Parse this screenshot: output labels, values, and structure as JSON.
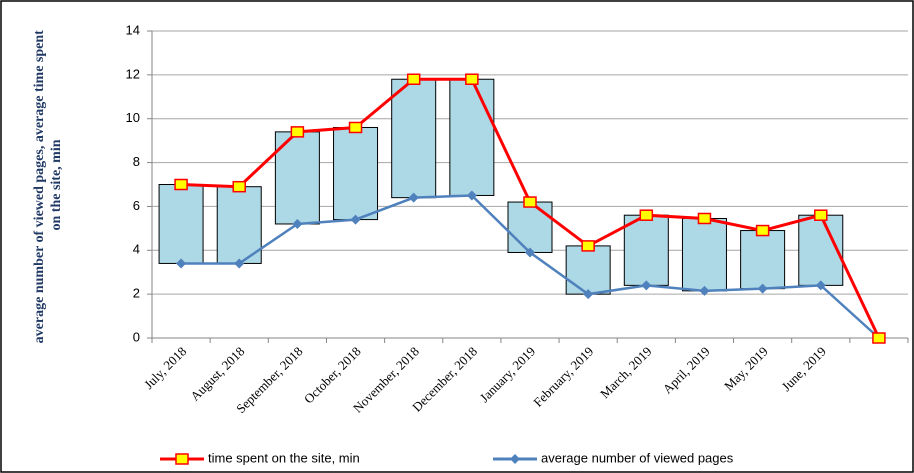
{
  "chart_data": {
    "type": "line",
    "ylabel": [
      "average number of viewed pages, average time spent",
      "on the site, min"
    ],
    "categories": [
      "July, 2018",
      "August, 2018",
      "September, 2018",
      "October, 2018",
      "November, 2018",
      "December, 2018",
      "January, 2019",
      "February, 2019",
      "March, 2019",
      "April, 2019",
      "May, 2019",
      "June, 2019",
      null
    ],
    "series": [
      {
        "name": "time spent on the site, min",
        "color": "#ff0000",
        "marker_color": "#ffff00",
        "values": [
          7.0,
          6.9,
          9.4,
          9.6,
          11.8,
          11.8,
          6.2,
          4.2,
          5.6,
          5.45,
          4.9,
          5.6,
          0
        ]
      },
      {
        "name": "average number of viewed pages",
        "color": "#4f81bd",
        "values": [
          3.4,
          3.4,
          5.2,
          5.4,
          6.4,
          6.5,
          3.9,
          2.0,
          2.4,
          2.15,
          2.25,
          2.4,
          0
        ]
      }
    ],
    "box_color": "#add8e6",
    "ylim": [
      0,
      14
    ],
    "yticks": [
      0,
      2,
      4,
      6,
      8,
      10,
      12,
      14
    ],
    "grid": true,
    "legend": "bottom"
  }
}
